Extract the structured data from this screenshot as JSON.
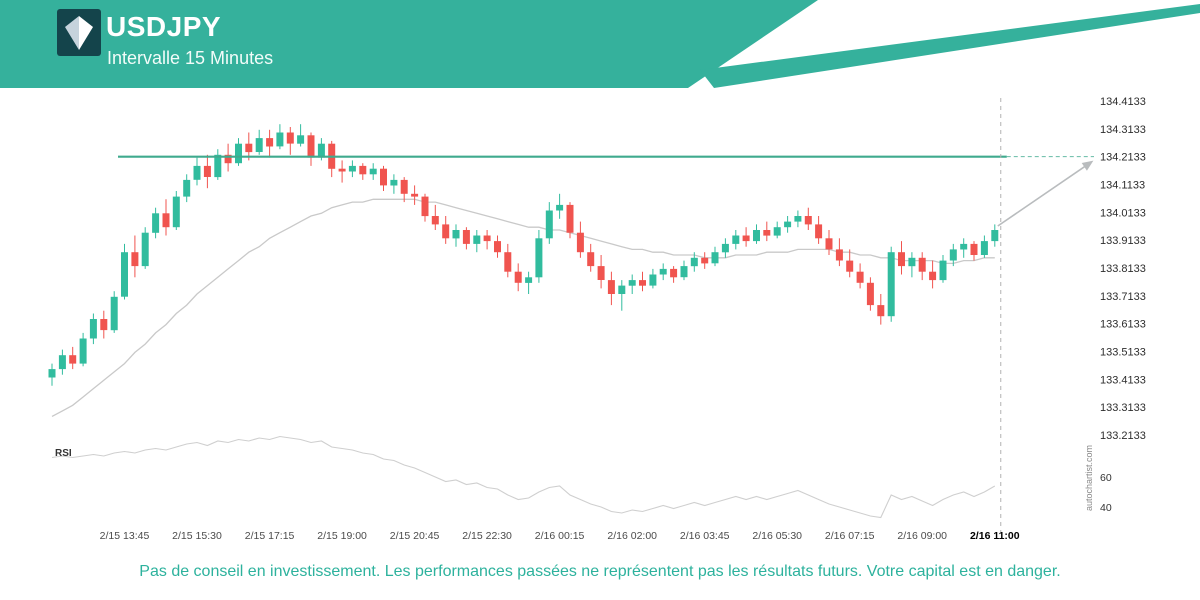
{
  "header": {
    "symbol": "USDJPY",
    "subtitle": "Intervalle 15 Minutes"
  },
  "watermark": "autochartist.com",
  "footer": {
    "disclaimer": "Pas de conseil en investissement. Les performances passées ne représentent pas les résultats futurs. Votre capital est en danger."
  },
  "chart_data": {
    "type": "candlestick",
    "title": "USDJPY",
    "interval": "15 Minutes",
    "grid": false,
    "legend": false,
    "y_axis": {
      "side": "right",
      "max": 134.4133,
      "min": 133.2133,
      "labels": [
        "134.4133",
        "134.3133",
        "134.2133",
        "134.1133",
        "134.0133",
        "133.9133",
        "133.8133",
        "133.7133",
        "133.6133",
        "133.5133",
        "133.4133",
        "133.3133",
        "133.2133"
      ]
    },
    "x_axis": {
      "labels": [
        {
          "text": "2/15 13:45",
          "index": 7
        },
        {
          "text": "2/15 15:30",
          "index": 14
        },
        {
          "text": "2/15 17:15",
          "index": 21
        },
        {
          "text": "2/15 19:00",
          "index": 28
        },
        {
          "text": "2/15 20:45",
          "index": 35
        },
        {
          "text": "2/15 22:30",
          "index": 42
        },
        {
          "text": "2/16 00:15",
          "index": 49
        },
        {
          "text": "2/16 02:00",
          "index": 56
        },
        {
          "text": "2/16 03:45",
          "index": 63
        },
        {
          "text": "2/16 05:30",
          "index": 70
        },
        {
          "text": "2/16 07:15",
          "index": 77
        },
        {
          "text": "2/16 09:00",
          "index": 84
        },
        {
          "text": "2/16 11:00",
          "index": 91,
          "bold": true
        }
      ]
    },
    "resistance_level": 134.2133,
    "current_time_label": "2/16 11:00",
    "forecast": {
      "direction": "up",
      "from_close": 133.95,
      "to_level": 134.2133
    },
    "colors": {
      "up": "#31bc9e",
      "down": "#f0544f",
      "trendline": "#3faa8e",
      "ma": "#c9c9c9",
      "rsi": "#cfcfcf",
      "forecast": "#b9bcbe",
      "accent": "#35b19c"
    },
    "candles": [
      [
        133.42,
        133.47,
        133.39,
        133.45
      ],
      [
        133.45,
        133.52,
        133.43,
        133.5
      ],
      [
        133.5,
        133.53,
        133.45,
        133.47
      ],
      [
        133.47,
        133.58,
        133.46,
        133.56
      ],
      [
        133.56,
        133.65,
        133.54,
        133.63
      ],
      [
        133.63,
        133.66,
        133.56,
        133.59
      ],
      [
        133.59,
        133.73,
        133.58,
        133.71
      ],
      [
        133.71,
        133.9,
        133.7,
        133.87
      ],
      [
        133.87,
        133.93,
        133.78,
        133.82
      ],
      [
        133.82,
        133.96,
        133.81,
        133.94
      ],
      [
        133.94,
        134.03,
        133.92,
        134.01
      ],
      [
        134.01,
        134.06,
        133.93,
        133.96
      ],
      [
        133.96,
        134.09,
        133.95,
        134.07
      ],
      [
        134.07,
        134.15,
        134.05,
        134.13
      ],
      [
        134.13,
        134.21,
        134.11,
        134.18
      ],
      [
        134.18,
        134.22,
        134.1,
        134.14
      ],
      [
        134.14,
        134.24,
        134.13,
        134.22
      ],
      [
        134.22,
        134.26,
        134.16,
        134.19
      ],
      [
        134.19,
        134.28,
        134.18,
        134.26
      ],
      [
        134.26,
        134.3,
        134.2,
        134.23
      ],
      [
        134.23,
        134.31,
        134.22,
        134.28
      ],
      [
        134.28,
        134.31,
        134.21,
        134.25
      ],
      [
        134.25,
        134.33,
        134.24,
        134.3
      ],
      [
        134.3,
        134.32,
        134.22,
        134.26
      ],
      [
        134.26,
        134.33,
        134.25,
        134.29
      ],
      [
        134.29,
        134.3,
        134.18,
        134.21
      ],
      [
        134.21,
        134.28,
        134.2,
        134.26
      ],
      [
        134.26,
        134.27,
        134.14,
        134.17
      ],
      [
        134.17,
        134.2,
        134.12,
        134.16
      ],
      [
        134.16,
        134.2,
        134.14,
        134.18
      ],
      [
        134.18,
        134.19,
        134.13,
        134.15
      ],
      [
        134.15,
        134.19,
        134.13,
        134.17
      ],
      [
        134.17,
        134.18,
        134.09,
        134.11
      ],
      [
        134.11,
        134.15,
        134.08,
        134.13
      ],
      [
        134.13,
        134.14,
        134.05,
        134.08
      ],
      [
        134.08,
        134.11,
        134.04,
        134.07
      ],
      [
        134.07,
        134.08,
        133.98,
        134.0
      ],
      [
        134.0,
        134.04,
        133.95,
        133.97
      ],
      [
        133.97,
        134.0,
        133.9,
        133.92
      ],
      [
        133.92,
        133.97,
        133.89,
        133.95
      ],
      [
        133.95,
        133.96,
        133.88,
        133.9
      ],
      [
        133.9,
        133.95,
        133.87,
        133.93
      ],
      [
        133.93,
        133.95,
        133.88,
        133.91
      ],
      [
        133.91,
        133.93,
        133.85,
        133.87
      ],
      [
        133.87,
        133.9,
        133.78,
        133.8
      ],
      [
        133.8,
        133.83,
        133.73,
        133.76
      ],
      [
        133.76,
        133.8,
        133.72,
        133.78
      ],
      [
        133.78,
        133.95,
        133.76,
        133.92
      ],
      [
        133.92,
        134.05,
        133.9,
        134.02
      ],
      [
        134.02,
        134.08,
        133.99,
        134.04
      ],
      [
        134.04,
        134.05,
        133.92,
        133.94
      ],
      [
        133.94,
        133.98,
        133.85,
        133.87
      ],
      [
        133.87,
        133.9,
        133.8,
        133.82
      ],
      [
        133.82,
        133.86,
        133.74,
        133.77
      ],
      [
        133.77,
        133.8,
        133.68,
        133.72
      ],
      [
        133.72,
        133.77,
        133.66,
        133.75
      ],
      [
        133.75,
        133.79,
        133.72,
        133.77
      ],
      [
        133.77,
        133.8,
        133.73,
        133.75
      ],
      [
        133.75,
        133.81,
        133.74,
        133.79
      ],
      [
        133.79,
        133.83,
        133.77,
        133.81
      ],
      [
        133.81,
        133.82,
        133.76,
        133.78
      ],
      [
        133.78,
        133.84,
        133.77,
        133.82
      ],
      [
        133.82,
        133.87,
        133.8,
        133.85
      ],
      [
        133.85,
        133.87,
        133.81,
        133.83
      ],
      [
        133.83,
        133.89,
        133.82,
        133.87
      ],
      [
        133.87,
        133.92,
        133.85,
        133.9
      ],
      [
        133.9,
        133.95,
        133.88,
        133.93
      ],
      [
        133.93,
        133.96,
        133.89,
        133.91
      ],
      [
        133.91,
        133.97,
        133.9,
        133.95
      ],
      [
        133.95,
        133.98,
        133.91,
        133.93
      ],
      [
        133.93,
        133.98,
        133.92,
        133.96
      ],
      [
        133.96,
        134.0,
        133.94,
        133.98
      ],
      [
        133.98,
        134.02,
        133.96,
        134.0
      ],
      [
        134.0,
        134.03,
        133.95,
        133.97
      ],
      [
        133.97,
        134.0,
        133.9,
        133.92
      ],
      [
        133.92,
        133.95,
        133.86,
        133.88
      ],
      [
        133.88,
        133.92,
        133.82,
        133.84
      ],
      [
        133.84,
        133.88,
        133.78,
        133.8
      ],
      [
        133.8,
        133.83,
        133.74,
        133.76
      ],
      [
        133.76,
        133.78,
        133.66,
        133.68
      ],
      [
        133.68,
        133.72,
        133.61,
        133.64
      ],
      [
        133.64,
        133.89,
        133.62,
        133.87
      ],
      [
        133.87,
        133.91,
        133.79,
        133.82
      ],
      [
        133.82,
        133.87,
        133.78,
        133.85
      ],
      [
        133.85,
        133.87,
        133.77,
        133.8
      ],
      [
        133.8,
        133.84,
        133.74,
        133.77
      ],
      [
        133.77,
        133.86,
        133.76,
        133.84
      ],
      [
        133.84,
        133.9,
        133.82,
        133.88
      ],
      [
        133.88,
        133.92,
        133.85,
        133.9
      ],
      [
        133.9,
        133.91,
        133.84,
        133.86
      ],
      [
        133.86,
        133.93,
        133.85,
        133.91
      ],
      [
        133.91,
        133.97,
        133.89,
        133.95
      ]
    ],
    "ma_values": [
      133.28,
      133.3,
      133.32,
      133.35,
      133.38,
      133.41,
      133.44,
      133.47,
      133.51,
      133.54,
      133.58,
      133.61,
      133.65,
      133.68,
      133.72,
      133.75,
      133.78,
      133.81,
      133.84,
      133.87,
      133.89,
      133.92,
      133.94,
      133.96,
      133.98,
      134.0,
      134.01,
      134.03,
      134.04,
      134.05,
      134.05,
      134.06,
      134.06,
      134.06,
      134.06,
      134.06,
      134.05,
      134.05,
      134.04,
      134.03,
      134.02,
      134.01,
      134.0,
      133.99,
      133.98,
      133.97,
      133.96,
      133.96,
      133.95,
      133.95,
      133.94,
      133.93,
      133.92,
      133.91,
      133.9,
      133.89,
      133.88,
      133.88,
      133.87,
      133.87,
      133.86,
      133.86,
      133.86,
      133.85,
      133.85,
      133.85,
      133.86,
      133.86,
      133.86,
      133.87,
      133.87,
      133.87,
      133.88,
      133.88,
      133.88,
      133.88,
      133.87,
      133.87,
      133.86,
      133.86,
      133.85,
      133.85,
      133.84,
      133.84,
      133.84,
      133.84,
      133.83,
      133.83,
      133.84,
      133.84,
      133.85,
      133.85
    ],
    "rsi": {
      "label": "RSI",
      "axis_labels": [
        60,
        40
      ],
      "values": [
        73,
        74,
        73,
        74,
        75,
        74,
        76,
        77,
        76,
        78,
        79,
        78,
        80,
        82,
        83,
        81,
        84,
        83,
        85,
        84,
        86,
        85,
        87,
        86,
        85,
        83,
        84,
        80,
        79,
        78,
        76,
        75,
        72,
        71,
        68,
        66,
        63,
        60,
        57,
        58,
        55,
        56,
        53,
        52,
        48,
        45,
        46,
        50,
        53,
        54,
        48,
        45,
        42,
        40,
        37,
        36,
        38,
        37,
        39,
        41,
        39,
        41,
        43,
        41,
        43,
        45,
        47,
        45,
        47,
        45,
        47,
        49,
        51,
        48,
        45,
        42,
        40,
        38,
        36,
        34,
        33,
        48,
        45,
        47,
        44,
        41,
        45,
        48,
        50,
        47,
        50,
        54
      ]
    }
  }
}
